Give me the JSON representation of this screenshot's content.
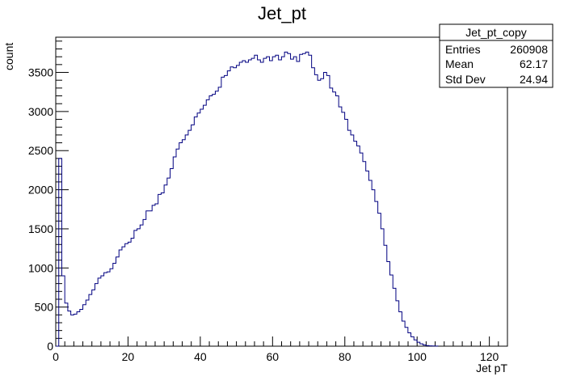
{
  "chart_data": {
    "type": "histogram",
    "title": "Jet_pt",
    "xlabel": "Jet pT",
    "ylabel": "count",
    "xlim": [
      0,
      125
    ],
    "ylim": [
      0,
      3950
    ],
    "bin_width": 0.833,
    "x_ticks": [
      0,
      20,
      40,
      60,
      80,
      100,
      120
    ],
    "y_ticks": [
      0,
      500,
      1000,
      1500,
      2000,
      2500,
      3000,
      3500
    ],
    "series": [
      {
        "color": "#000080",
        "values": [
          0,
          2400,
          900,
          550,
          450,
          400,
          410,
          440,
          470,
          530,
          590,
          660,
          720,
          800,
          870,
          900,
          940,
          950,
          990,
          1060,
          1140,
          1230,
          1270,
          1310,
          1330,
          1380,
          1480,
          1500,
          1550,
          1620,
          1730,
          1730,
          1800,
          1820,
          1940,
          1960,
          2060,
          2150,
          2270,
          2420,
          2520,
          2600,
          2640,
          2700,
          2760,
          2830,
          2930,
          2980,
          3030,
          3080,
          3150,
          3200,
          3220,
          3260,
          3310,
          3440,
          3460,
          3520,
          3570,
          3560,
          3590,
          3630,
          3650,
          3630,
          3660,
          3680,
          3720,
          3660,
          3630,
          3680,
          3700,
          3650,
          3700,
          3720,
          3660,
          3700,
          3760,
          3740,
          3670,
          3700,
          3640,
          3730,
          3740,
          3760,
          3720,
          3560,
          3470,
          3400,
          3420,
          3500,
          3460,
          3300,
          3250,
          3200,
          3060,
          2990,
          2900,
          2760,
          2700,
          2620,
          2560,
          2470,
          2360,
          2240,
          2120,
          2000,
          1850,
          1700,
          1500,
          1290,
          1080,
          910,
          740,
          580,
          440,
          320,
          240,
          170,
          120,
          80,
          50,
          30,
          15,
          8,
          4,
          2,
          1
        ]
      }
    ],
    "stats_box": {
      "name": "Jet_pt_copy",
      "rows": [
        {
          "label": "Entries",
          "value": "260908"
        },
        {
          "label": "Mean",
          "value": "62.17"
        },
        {
          "label": "Std Dev",
          "value": "24.94"
        }
      ]
    },
    "grid": false,
    "legend": "top-right"
  }
}
